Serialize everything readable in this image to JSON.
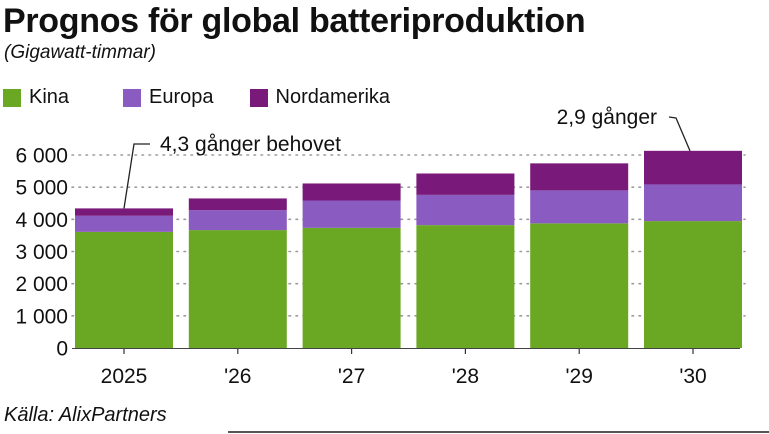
{
  "chart_data": {
    "type": "bar",
    "stacked": true,
    "title": "Prognos för global batteriproduktion",
    "subtitle": "(Gigawatt-timmar)",
    "xlabel": "",
    "ylabel": "",
    "categories": [
      "2025",
      "'26",
      "'27",
      "'28",
      "'29",
      "'30"
    ],
    "series": [
      {
        "name": "Kina",
        "color": "#6aa823",
        "values": [
          3610,
          3665,
          3735,
          3820,
          3875,
          3945
        ]
      },
      {
        "name": "Europa",
        "color": "#8a5cc2",
        "values": [
          500,
          620,
          850,
          940,
          1025,
          1140
        ]
      },
      {
        "name": "Nordamerika",
        "color": "#791a7a",
        "values": [
          230,
          365,
          530,
          665,
          840,
          1045
        ]
      }
    ],
    "ylim": [
      0,
      6000
    ],
    "yticks": [
      0,
      1000,
      2000,
      3000,
      4000,
      5000,
      6000
    ],
    "ytick_labels": [
      "0",
      "1 000",
      "2 000",
      "3 000",
      "4 000",
      "5 000",
      "6 000"
    ],
    "grid": true,
    "legend_position": "top-left",
    "annotations": [
      {
        "text": "4,3 gånger behovet",
        "category": "2025"
      },
      {
        "text": "2,9 gånger",
        "category": "'30"
      }
    ],
    "source": "Källa: AlixPartners"
  }
}
